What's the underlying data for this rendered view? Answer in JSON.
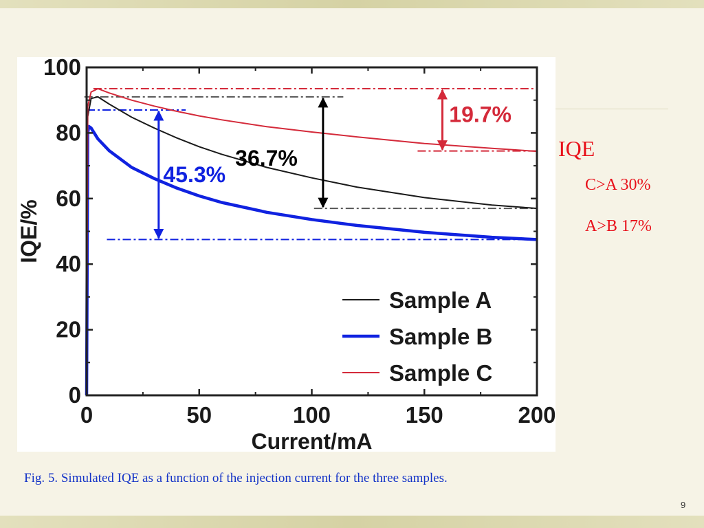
{
  "slide": {
    "side_title": "IQE",
    "notes": [
      "C>A 30%",
      "A>B 17%"
    ],
    "caption": "Fig. 5. Simulated IQE as a function of the injection current for the three samples.",
    "page_number": "9"
  },
  "chart_data": {
    "type": "line",
    "xlabel": "Current/mA",
    "ylabel": "IQE/%",
    "xlim": [
      0,
      200
    ],
    "ylim": [
      0,
      100
    ],
    "x_ticks": [
      0,
      50,
      100,
      150,
      200
    ],
    "y_ticks": [
      0,
      20,
      40,
      60,
      80,
      100
    ],
    "grid": false,
    "legend_position": "bottom-right",
    "series": [
      {
        "name": "Sample A",
        "color": "#1a1a1a",
        "x": [
          0,
          0.5,
          2,
          5,
          10,
          20,
          30,
          40,
          50,
          60,
          80,
          100,
          120,
          150,
          180,
          200
        ],
        "y": [
          0,
          85,
          90.5,
          91,
          88.8,
          84.8,
          81.5,
          78.5,
          75.8,
          73.5,
          69.5,
          66.3,
          63.5,
          60.3,
          58,
          57
        ]
      },
      {
        "name": "Sample B",
        "color": "#1022e0",
        "x": [
          0,
          0.5,
          1,
          2,
          5,
          10,
          20,
          30,
          40,
          50,
          60,
          80,
          100,
          120,
          150,
          180,
          200
        ],
        "y": [
          0,
          80,
          82,
          81.5,
          78.2,
          74.6,
          69.5,
          66.1,
          63.2,
          60.8,
          58.8,
          55.8,
          53.6,
          51.8,
          49.7,
          48.2,
          47.5
        ]
      },
      {
        "name": "Sample C",
        "color": "#d42a3a",
        "x": [
          0,
          0.5,
          2,
          5,
          10,
          20,
          30,
          40,
          50,
          60,
          80,
          100,
          120,
          150,
          180,
          200
        ],
        "y": [
          0,
          88,
          92.5,
          93.5,
          92.2,
          90,
          88.2,
          86.6,
          85.2,
          84,
          81.9,
          80.3,
          78.8,
          76.8,
          75.3,
          74.4
        ]
      }
    ],
    "reference_lines": [
      {
        "color": "#d42a3a",
        "y": 93.5,
        "x_from": 3,
        "x_to": 200
      },
      {
        "color": "#d42a3a",
        "y": 74.5,
        "x_from": 147,
        "x_to": 200
      },
      {
        "color": "#555555",
        "y": 91,
        "x_from": -1,
        "x_to": 114
      },
      {
        "color": "#555555",
        "y": 57,
        "x_from": 101,
        "x_to": 200
      },
      {
        "color": "#1022e0",
        "y": 87,
        "x_from": 0,
        "x_to": 44
      },
      {
        "color": "#1022e0",
        "y": 47.5,
        "x_from": 9,
        "x_to": 200
      }
    ],
    "annotations": [
      {
        "label": "19.7%",
        "color": "#d42a3a",
        "arrow_x": 158,
        "y_from": 93.5,
        "y_to": 74.5,
        "label_x": 161,
        "label_y": 85.8,
        "boxed": true
      },
      {
        "label": "36.7%",
        "color": "#000000",
        "arrow_x": 105,
        "y_from": 91,
        "y_to": 57,
        "label_x": 66,
        "label_y": 72.5,
        "boxed": false
      },
      {
        "label": "45.3%",
        "color": "#1022e0",
        "arrow_x": 32,
        "y_from": 87,
        "y_to": 47.5,
        "label_x": 34,
        "label_y": 67.5,
        "boxed": false
      }
    ]
  }
}
